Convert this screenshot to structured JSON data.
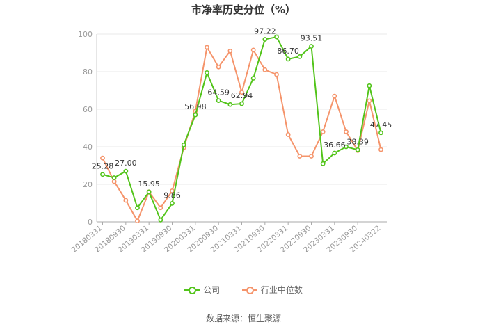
{
  "title": "市净率历史分位（%）",
  "source": "数据来源：恒生聚源",
  "colors": {
    "company": "#52c41a",
    "industry": "#f5946b",
    "grid": "#e8e8e8",
    "axis": "#999999"
  },
  "chart_data": {
    "type": "line",
    "ylim": [
      0,
      100
    ],
    "yticks": [
      0,
      20,
      40,
      60,
      80,
      100
    ],
    "x": [
      "20180331",
      "20180630",
      "20180930",
      "20181231",
      "20190331",
      "20190630",
      "20190930",
      "20191231",
      "20200331",
      "20200630",
      "20200930",
      "20201231",
      "20210331",
      "20210630",
      "20210930",
      "20211231",
      "20220331",
      "20220630",
      "20220930",
      "20221231",
      "20230331",
      "20230630",
      "20230930",
      "20231231",
      "20240322"
    ],
    "xticks": [
      "20180331",
      "20180930",
      "20190331",
      "20190930",
      "20200331",
      "20200930",
      "20210331",
      "20210930",
      "20220331",
      "20220930",
      "20230331",
      "20230930",
      "20240322"
    ],
    "series": [
      {
        "name": "公司",
        "color": "#52c41a",
        "values": [
          25.28,
          23.5,
          27.0,
          7.5,
          15.95,
          1.0,
          9.86,
          41.0,
          56.98,
          79.5,
          64.59,
          62.5,
          62.94,
          76.5,
          97.22,
          98.5,
          86.7,
          88.0,
          93.51,
          31.0,
          36.66,
          40.0,
          38.39,
          72.5,
          47.45
        ]
      },
      {
        "name": "行业中位数",
        "color": "#f5946b",
        "values": [
          34.0,
          21.5,
          11.5,
          0.5,
          16.0,
          7.5,
          16.5,
          39.5,
          59.0,
          93.0,
          82.5,
          91.0,
          69.0,
          91.5,
          81.0,
          78.5,
          46.5,
          35.0,
          35.0,
          48.0,
          67.0,
          48.0,
          38.0,
          64.5,
          38.5
        ]
      }
    ],
    "data_labels": [
      {
        "index": 0,
        "text": "25.28"
      },
      {
        "index": 2,
        "text": "27.00"
      },
      {
        "index": 4,
        "text": "15.95"
      },
      {
        "index": 6,
        "text": "9.86"
      },
      {
        "index": 8,
        "text": "56.98"
      },
      {
        "index": 10,
        "text": "64.59"
      },
      {
        "index": 12,
        "text": "62.94"
      },
      {
        "index": 14,
        "text": "97.22"
      },
      {
        "index": 16,
        "text": "86.70"
      },
      {
        "index": 18,
        "text": "93.51"
      },
      {
        "index": 20,
        "text": "36.66"
      },
      {
        "index": 22,
        "text": "38.39"
      },
      {
        "index": 24,
        "text": "47.45"
      }
    ],
    "legend": [
      "公司",
      "行业中位数"
    ],
    "legend_position": "bottom",
    "grid": true
  }
}
